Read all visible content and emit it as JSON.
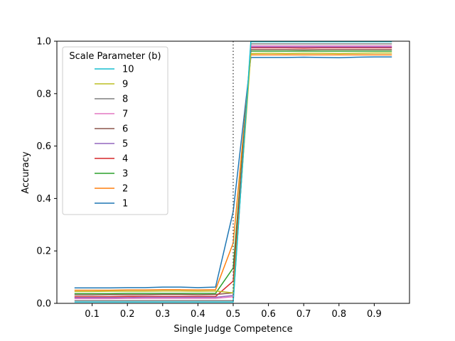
{
  "chart_data": {
    "type": "line",
    "title": "",
    "xlabel": "Single Judge Competence",
    "ylabel": "Accuracy",
    "xlim": [
      0.0,
      1.0
    ],
    "ylim": [
      0.0,
      1.0
    ],
    "xticks": [
      "0.1",
      "0.2",
      "0.3",
      "0.4",
      "0.5",
      "0.6",
      "0.7",
      "0.8",
      "0.9"
    ],
    "yticks": [
      "0.0",
      "0.2",
      "0.4",
      "0.6",
      "0.8",
      "1.0"
    ],
    "grid": false,
    "vline": {
      "x": 0.5,
      "style": "dotted",
      "color": "#555555"
    },
    "legend": {
      "title": "Scale Parameter (b)",
      "position": "upper-left"
    },
    "x": [
      0.05,
      0.1,
      0.15,
      0.2,
      0.25,
      0.3,
      0.35,
      0.4,
      0.45,
      0.5,
      0.55,
      0.6,
      0.65,
      0.7,
      0.75,
      0.8,
      0.85,
      0.9,
      0.95
    ],
    "series": [
      {
        "name": "10",
        "color": "#17becf",
        "values": [
          0.005,
          0.005,
          0.005,
          0.005,
          0.005,
          0.005,
          0.005,
          0.005,
          0.005,
          0.005,
          0.998,
          0.998,
          0.998,
          0.998,
          0.998,
          0.998,
          0.998,
          0.998,
          0.998
        ]
      },
      {
        "name": "9",
        "color": "#bcbd22",
        "values": [
          0.045,
          0.045,
          0.046,
          0.046,
          0.046,
          0.047,
          0.047,
          0.046,
          0.047,
          0.04,
          0.953,
          0.954,
          0.953,
          0.954,
          0.954,
          0.953,
          0.954,
          0.955,
          0.955
        ]
      },
      {
        "name": "8",
        "color": "#7f7f7f",
        "values": [
          0.01,
          0.01,
          0.01,
          0.01,
          0.01,
          0.01,
          0.01,
          0.01,
          0.01,
          0.01,
          0.99,
          0.99,
          0.99,
          0.99,
          0.99,
          0.99,
          0.99,
          0.99,
          0.99
        ]
      },
      {
        "name": "7",
        "color": "#e377c2",
        "values": [
          0.018,
          0.018,
          0.018,
          0.019,
          0.019,
          0.019,
          0.019,
          0.019,
          0.019,
          0.025,
          0.982,
          0.982,
          0.982,
          0.982,
          0.982,
          0.982,
          0.982,
          0.982,
          0.982
        ]
      },
      {
        "name": "6",
        "color": "#8c564b",
        "values": [
          0.032,
          0.032,
          0.033,
          0.033,
          0.033,
          0.034,
          0.034,
          0.033,
          0.034,
          0.04,
          0.968,
          0.968,
          0.968,
          0.967,
          0.968,
          0.968,
          0.968,
          0.968,
          0.968
        ]
      },
      {
        "name": "5",
        "color": "#9467bd",
        "values": [
          0.022,
          0.022,
          0.022,
          0.022,
          0.023,
          0.023,
          0.023,
          0.023,
          0.023,
          0.03,
          0.978,
          0.978,
          0.978,
          0.978,
          0.978,
          0.978,
          0.978,
          0.978,
          0.978
        ]
      },
      {
        "name": "4",
        "color": "#d62728",
        "values": [
          0.025,
          0.025,
          0.025,
          0.026,
          0.026,
          0.026,
          0.026,
          0.026,
          0.026,
          0.085,
          0.975,
          0.975,
          0.975,
          0.974,
          0.975,
          0.975,
          0.975,
          0.975,
          0.975
        ]
      },
      {
        "name": "3",
        "color": "#2ca02c",
        "values": [
          0.037,
          0.037,
          0.037,
          0.038,
          0.038,
          0.038,
          0.038,
          0.038,
          0.038,
          0.135,
          0.962,
          0.962,
          0.962,
          0.962,
          0.962,
          0.962,
          0.962,
          0.962,
          0.962
        ]
      },
      {
        "name": "2",
        "color": "#ff7f0e",
        "values": [
          0.05,
          0.05,
          0.05,
          0.051,
          0.051,
          0.052,
          0.052,
          0.051,
          0.052,
          0.23,
          0.948,
          0.948,
          0.948,
          0.948,
          0.948,
          0.948,
          0.948,
          0.948,
          0.948
        ]
      },
      {
        "name": "1",
        "color": "#1f77b4",
        "values": [
          0.059,
          0.059,
          0.059,
          0.06,
          0.06,
          0.062,
          0.062,
          0.06,
          0.062,
          0.35,
          0.938,
          0.938,
          0.938,
          0.939,
          0.938,
          0.937,
          0.939,
          0.94,
          0.94
        ]
      }
    ]
  }
}
